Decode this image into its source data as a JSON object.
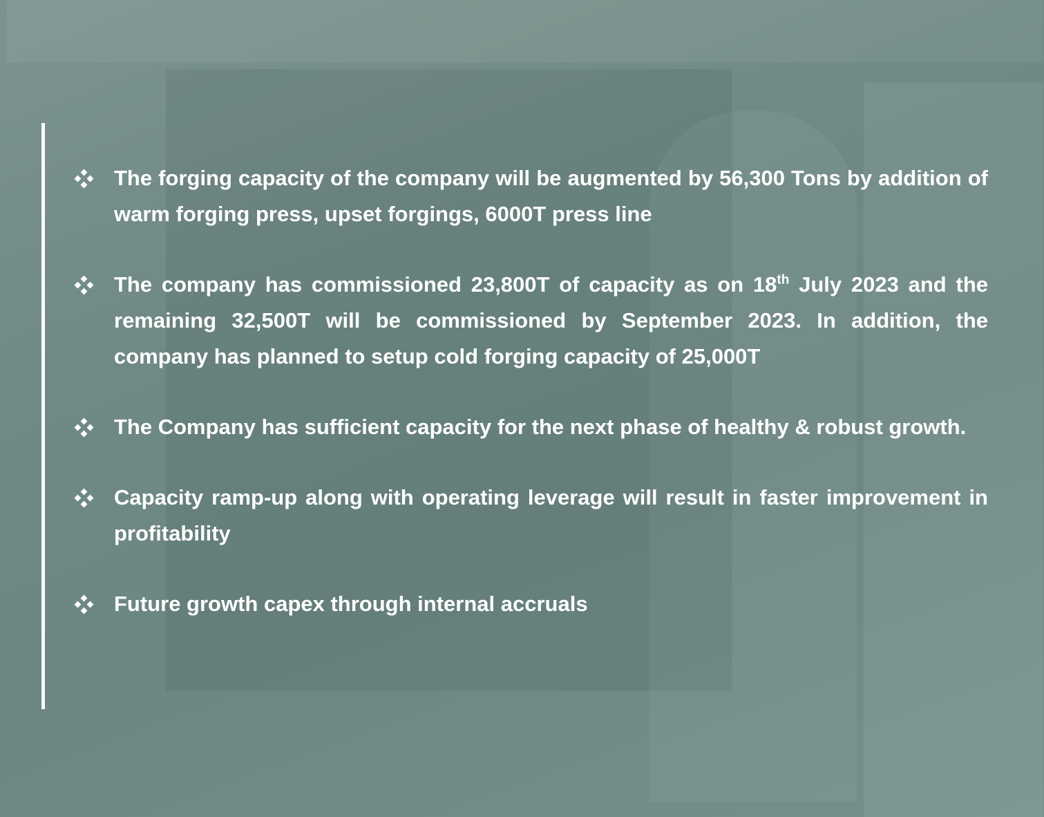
{
  "bullets": [
    "The forging capacity of the company will be augmented by 56,300 Tons by addition of warm forging press, upset forgings, 6000T press line",
    {
      "before": "The company has commissioned 23,800T of capacity as on 18",
      "sup": "th",
      "after": "July 2023 and the remaining 32,500T will be commissioned by September 2023. In addition, the company has planned to setup cold forging capacity of 25,000T"
    },
    "The Company has sufficient capacity for the next phase of healthy & robust growth.",
    "Capacity ramp-up along with operating leverage will result in faster improvement in profitability",
    "Future growth capex through internal accruals"
  ]
}
